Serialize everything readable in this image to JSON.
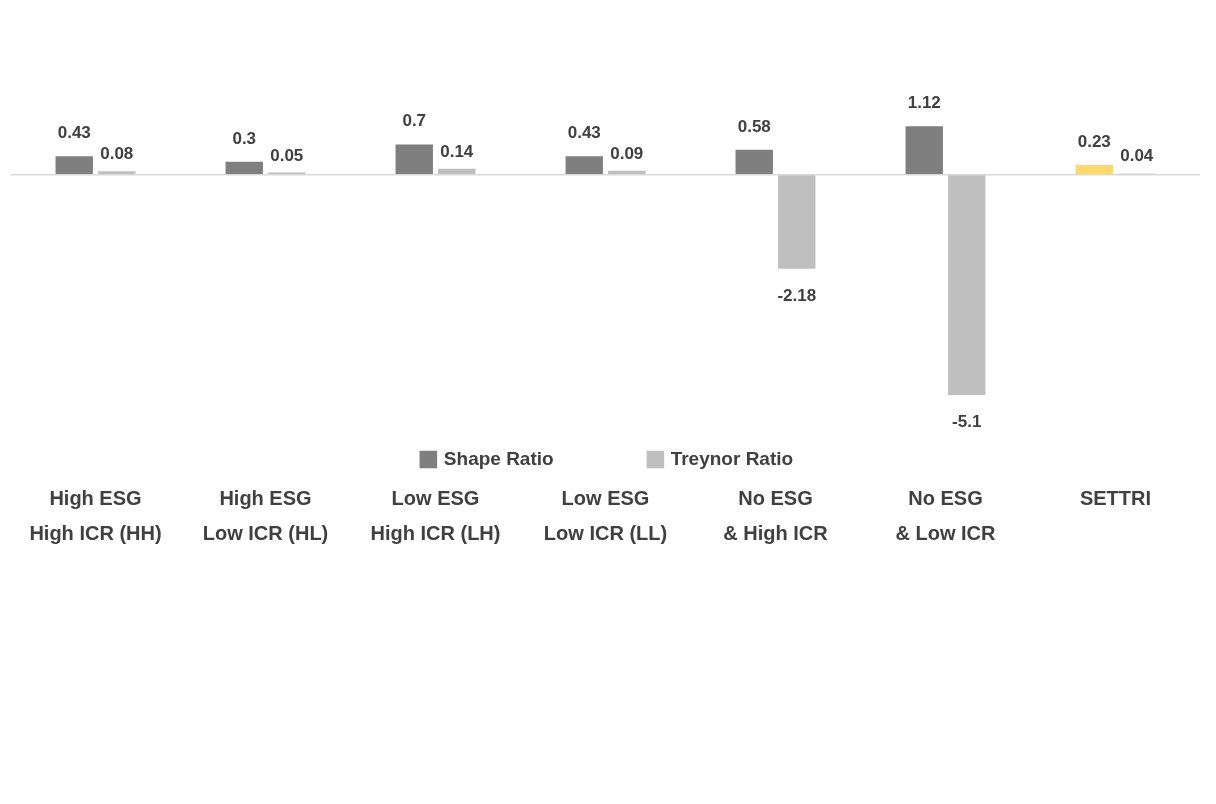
{
  "chart_data": {
    "type": "bar",
    "categories": [
      "High ESG\nHigh ICR (HH)",
      "High ESG\nLow ICR (HL)",
      "Low ESG\nHigh ICR (LH)",
      "Low ESG\nLow ICR (LL)",
      "No ESG\n& High ICR",
      "No ESG\n& Low ICR",
      "SETTRI"
    ],
    "series": [
      {
        "name": "Shape Ratio",
        "color": "#7f7f7f",
        "colors": [
          "#7f7f7f",
          "#7f7f7f",
          "#7f7f7f",
          "#7f7f7f",
          "#7f7f7f",
          "#7f7f7f",
          "#ffd966"
        ],
        "values": [
          0.43,
          0.3,
          0.7,
          0.43,
          0.58,
          1.12,
          0.23
        ]
      },
      {
        "name": "Treynor Ratio",
        "color": "#bfbfbf",
        "colors": [
          "#bfbfbf",
          "#bfbfbf",
          "#bfbfbf",
          "#bfbfbf",
          "#bfbfbf",
          "#bfbfbf",
          "#ffe699"
        ],
        "values": [
          0.08,
          0.05,
          0.14,
          0.09,
          -2.18,
          -5.1,
          0.04
        ]
      }
    ],
    "data_labels": true,
    "legend": "bottom",
    "grid": false
  }
}
